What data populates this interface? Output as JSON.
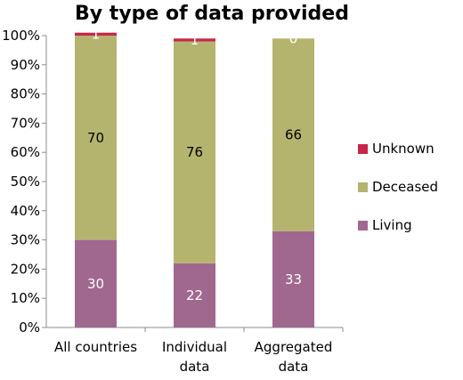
{
  "chart_data": {
    "type": "bar",
    "stacked": true,
    "title": "By type of data provided",
    "categories": [
      [
        "All countries"
      ],
      [
        "Individual",
        "data"
      ],
      [
        "Aggregated",
        "data"
      ]
    ],
    "series": [
      {
        "name": "Living",
        "values": [
          30,
          22,
          33
        ],
        "color": "#A1688F",
        "label_color": "#ffffff"
      },
      {
        "name": "Deceased",
        "values": [
          70,
          76,
          66
        ],
        "color": "#B4B46F",
        "label_color": "#000000"
      },
      {
        "name": "Unknown",
        "values": [
          1,
          1,
          0
        ],
        "color": "#C8264A",
        "label_color": "#ffffff"
      }
    ],
    "ylim": [
      0,
      100
    ],
    "yticks": [
      "0%",
      "10%",
      "20%",
      "30%",
      "40%",
      "50%",
      "60%",
      "70%",
      "80%",
      "90%",
      "100%"
    ],
    "legend_position": "right",
    "grid": false
  }
}
